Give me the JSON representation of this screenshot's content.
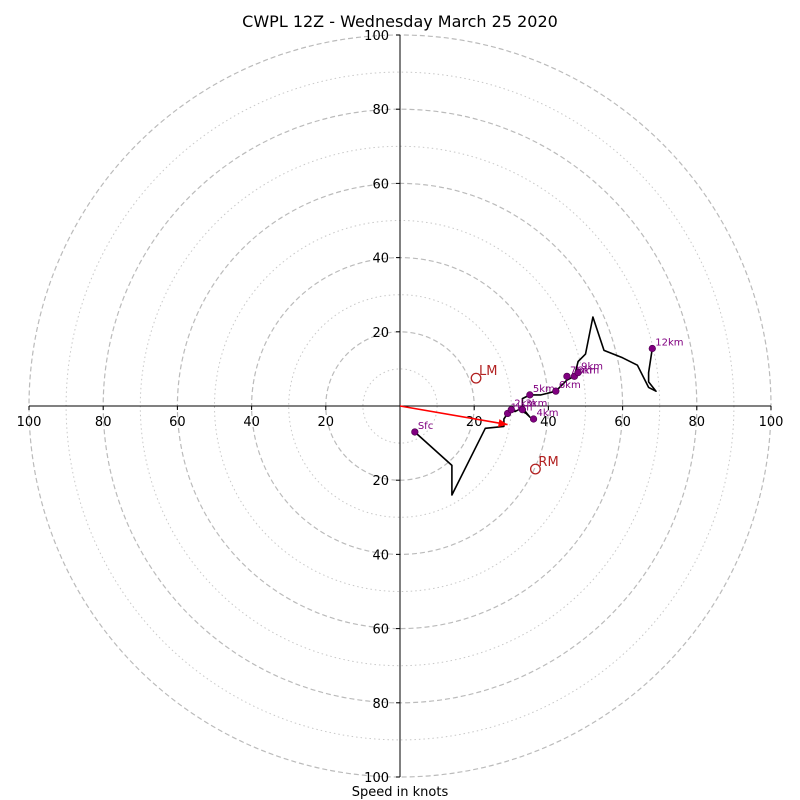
{
  "chart_data": {
    "type": "hodograph",
    "title": "CWPL 12Z - Wednesday March 25 2020",
    "xlabel": "Speed in knots",
    "axis_range": [
      -100,
      100
    ],
    "major_ticks": [
      20,
      40,
      60,
      80,
      100
    ],
    "tick_labels": [
      "20",
      "40",
      "60",
      "80",
      "100"
    ],
    "rings_major": [
      20,
      40,
      60,
      80,
      100
    ],
    "rings_minor": [
      10,
      30,
      50,
      70,
      90
    ],
    "grid": true,
    "colors": {
      "trace": "#000000",
      "height_markers": "#800080",
      "storm_motion": "#b22222",
      "mean_wind_vector": "#ff0000",
      "grid": "#bbbbbb"
    },
    "trace_uv": [
      [
        4,
        -7
      ],
      [
        14,
        -16
      ],
      [
        14,
        -24
      ],
      [
        23,
        -6
      ],
      [
        28,
        -5.5
      ],
      [
        28,
        -3.5
      ],
      [
        29,
        -2
      ],
      [
        30,
        -1
      ],
      [
        31,
        -1.5
      ],
      [
        32,
        -1
      ],
      [
        34,
        -2
      ],
      [
        35,
        -3
      ],
      [
        33,
        -0.5
      ],
      [
        33,
        1
      ],
      [
        33,
        2
      ],
      [
        35,
        3
      ],
      [
        38,
        3
      ],
      [
        42,
        4
      ],
      [
        45,
        7
      ],
      [
        47,
        8
      ],
      [
        48,
        12
      ],
      [
        49,
        13
      ],
      [
        50,
        14
      ],
      [
        52,
        24
      ],
      [
        55,
        15
      ],
      [
        60,
        13
      ],
      [
        64,
        11
      ],
      [
        67,
        5
      ],
      [
        69,
        4
      ],
      [
        67,
        6.5
      ],
      [
        67,
        9
      ],
      [
        68,
        15.5
      ]
    ],
    "height_markers": [
      {
        "label": "Sfc",
        "u": 4,
        "v": -7
      },
      {
        "label": "1km",
        "u": 29,
        "v": -2
      },
      {
        "label": "2km",
        "u": 30,
        "v": -1
      },
      {
        "label": "3km",
        "u": 33,
        "v": -1
      },
      {
        "label": "4km",
        "u": 36,
        "v": -3.5
      },
      {
        "label": "5km",
        "u": 35,
        "v": 3
      },
      {
        "label": "6km",
        "u": 42,
        "v": 4
      },
      {
        "label": "7km",
        "u": 45,
        "v": 8
      },
      {
        "label": "8km",
        "u": 47,
        "v": 8
      },
      {
        "label": "9km",
        "u": 48,
        "v": 9
      },
      {
        "label": "12km",
        "u": 68,
        "v": 15.5
      }
    ],
    "storm_motion": [
      {
        "label": "LM",
        "u": 20.5,
        "v": 7.5
      },
      {
        "label": "RM",
        "u": 36.5,
        "v": -17
      }
    ],
    "mean_wind_vector": {
      "u": 29,
      "v": -5
    }
  }
}
